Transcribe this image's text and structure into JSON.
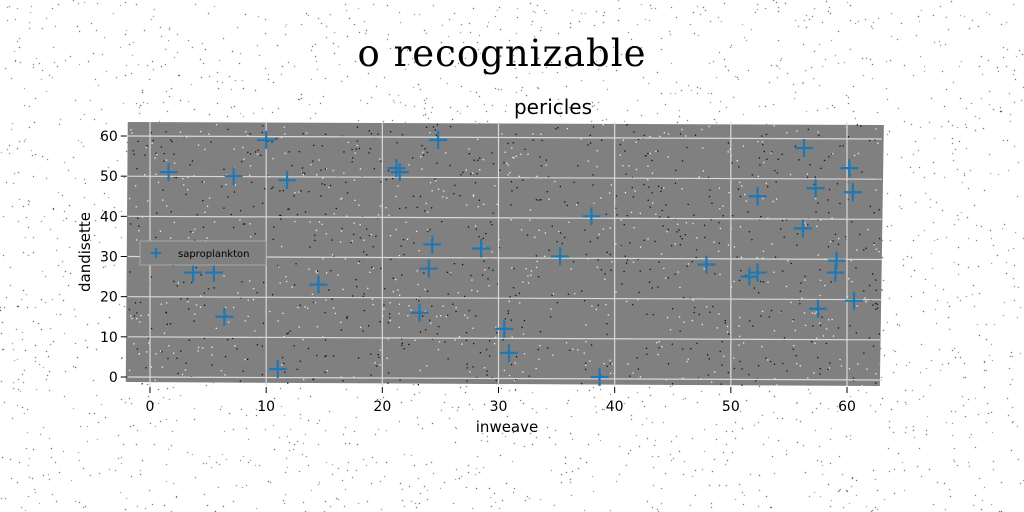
{
  "suptitle": "o recognizable",
  "chart_data": {
    "type": "scatter",
    "title": "pericles",
    "xlabel": "inweave",
    "ylabel": "dandisette",
    "xlim": [
      -2,
      63
    ],
    "ylim": [
      -2,
      63
    ],
    "xticks": [
      0,
      10,
      20,
      30,
      40,
      50,
      60
    ],
    "yticks": [
      0,
      10,
      20,
      30,
      40,
      50,
      60
    ],
    "grid": true,
    "legend": "center-left",
    "colors": {
      "plot_background": "#808080",
      "grid": "#d9d9d9",
      "marker": "#1f77b4"
    },
    "series": [
      {
        "name": "saproplankton",
        "marker": "plus",
        "x": [
          1.6,
          7.2,
          10.0,
          11.8,
          3.7,
          5.5,
          6.4,
          14.5,
          11.0,
          21.2,
          21.5,
          24.8,
          24.3,
          28.5,
          24.0,
          23.2,
          30.5,
          30.9,
          35.3,
          38.0,
          38.7,
          47.9,
          51.6,
          52.3,
          52.3,
          56.3,
          57.3,
          57.5,
          56.2,
          59.0,
          59.1,
          60.2,
          60.5,
          60.6
        ],
        "y": [
          51,
          50,
          59,
          49,
          26,
          26,
          15,
          23,
          2,
          52,
          51,
          59,
          33,
          32,
          27,
          16,
          12,
          6,
          30,
          40,
          0,
          28,
          25,
          26,
          45,
          57,
          47,
          17,
          37,
          26,
          29,
          52,
          46,
          19
        ]
      }
    ]
  }
}
